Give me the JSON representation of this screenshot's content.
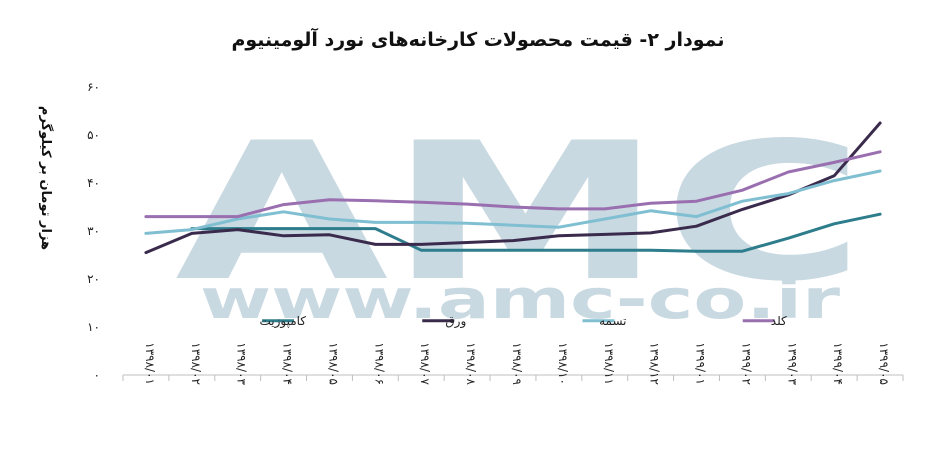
{
  "chart_data": {
    "type": "line",
    "title": "نمودار ۲- قیمت محصولات کارخانه‌های نورد آلومینیوم",
    "ylabel": "هزار تومان بر کیلوگرم",
    "ylim": [
      0,
      60
    ],
    "yticks": [
      {
        "v": 0,
        "label": "۰"
      },
      {
        "v": 10,
        "label": "۱۰"
      },
      {
        "v": 20,
        "label": "۲۰"
      },
      {
        "v": 30,
        "label": "۳۰"
      },
      {
        "v": 40,
        "label": "۴۰"
      },
      {
        "v": 50,
        "label": "۵۰"
      },
      {
        "v": 60,
        "label": "۶۰"
      }
    ],
    "categories": [
      "۱۳۹۸/۰۱",
      "۱۳۹۸/۰۲",
      "۱۳۹۸/۰۳",
      "۱۳۹۸/۰۴",
      "۱۳۹۸/۰۵",
      "۱۳۹۸/۰۶",
      "۱۳۹۸/۰۷",
      "۱۳۹۸/۰۸",
      "۱۳۹۸/۰۹",
      "۱۳۹۸/۱۰",
      "۱۳۹۸/۱۱",
      "۱۳۹۸/۱۲",
      "۱۳۹۹/۰۱",
      "۱۳۹۹/۰۲",
      "۱۳۹۹/۰۳",
      "۱۳۹۹/۰۴",
      "۱۳۹۹/۰۵"
    ],
    "series": [
      {
        "name": "کامپوزیت",
        "color": "#2e7d8c",
        "values": [
          null,
          30.5,
          30.5,
          30.5,
          30.5,
          30.5,
          26,
          26,
          26,
          26,
          26,
          26,
          25.8,
          25.8,
          28.5,
          31.5,
          33.5
        ]
      },
      {
        "name": "ورق",
        "color": "#3a2b4d",
        "values": [
          25.5,
          29.5,
          30.3,
          29,
          29.2,
          27.2,
          27.2,
          27.6,
          28,
          29,
          29.3,
          29.6,
          31,
          34.5,
          37.5,
          41.5,
          52.5
        ]
      },
      {
        "name": "تسمه",
        "color": "#7fbfd1",
        "values": [
          29.5,
          30.3,
          32.5,
          34,
          32.5,
          31.8,
          31.8,
          31.6,
          31.2,
          30.8,
          32.5,
          34.2,
          33,
          36.2,
          37.8,
          40.5,
          42.5
        ]
      },
      {
        "name": "کلد",
        "color": "#9a6fb0",
        "values": [
          33,
          33,
          33,
          35.5,
          36.5,
          36.3,
          36,
          35.6,
          35,
          34.6,
          34.6,
          35.8,
          36.2,
          38.5,
          42.3,
          44.3,
          46.5
        ]
      }
    ],
    "legend": "inside-center",
    "grid": false
  },
  "watermark": {
    "big": "AMC",
    "small": "www.amc-co.ir"
  }
}
